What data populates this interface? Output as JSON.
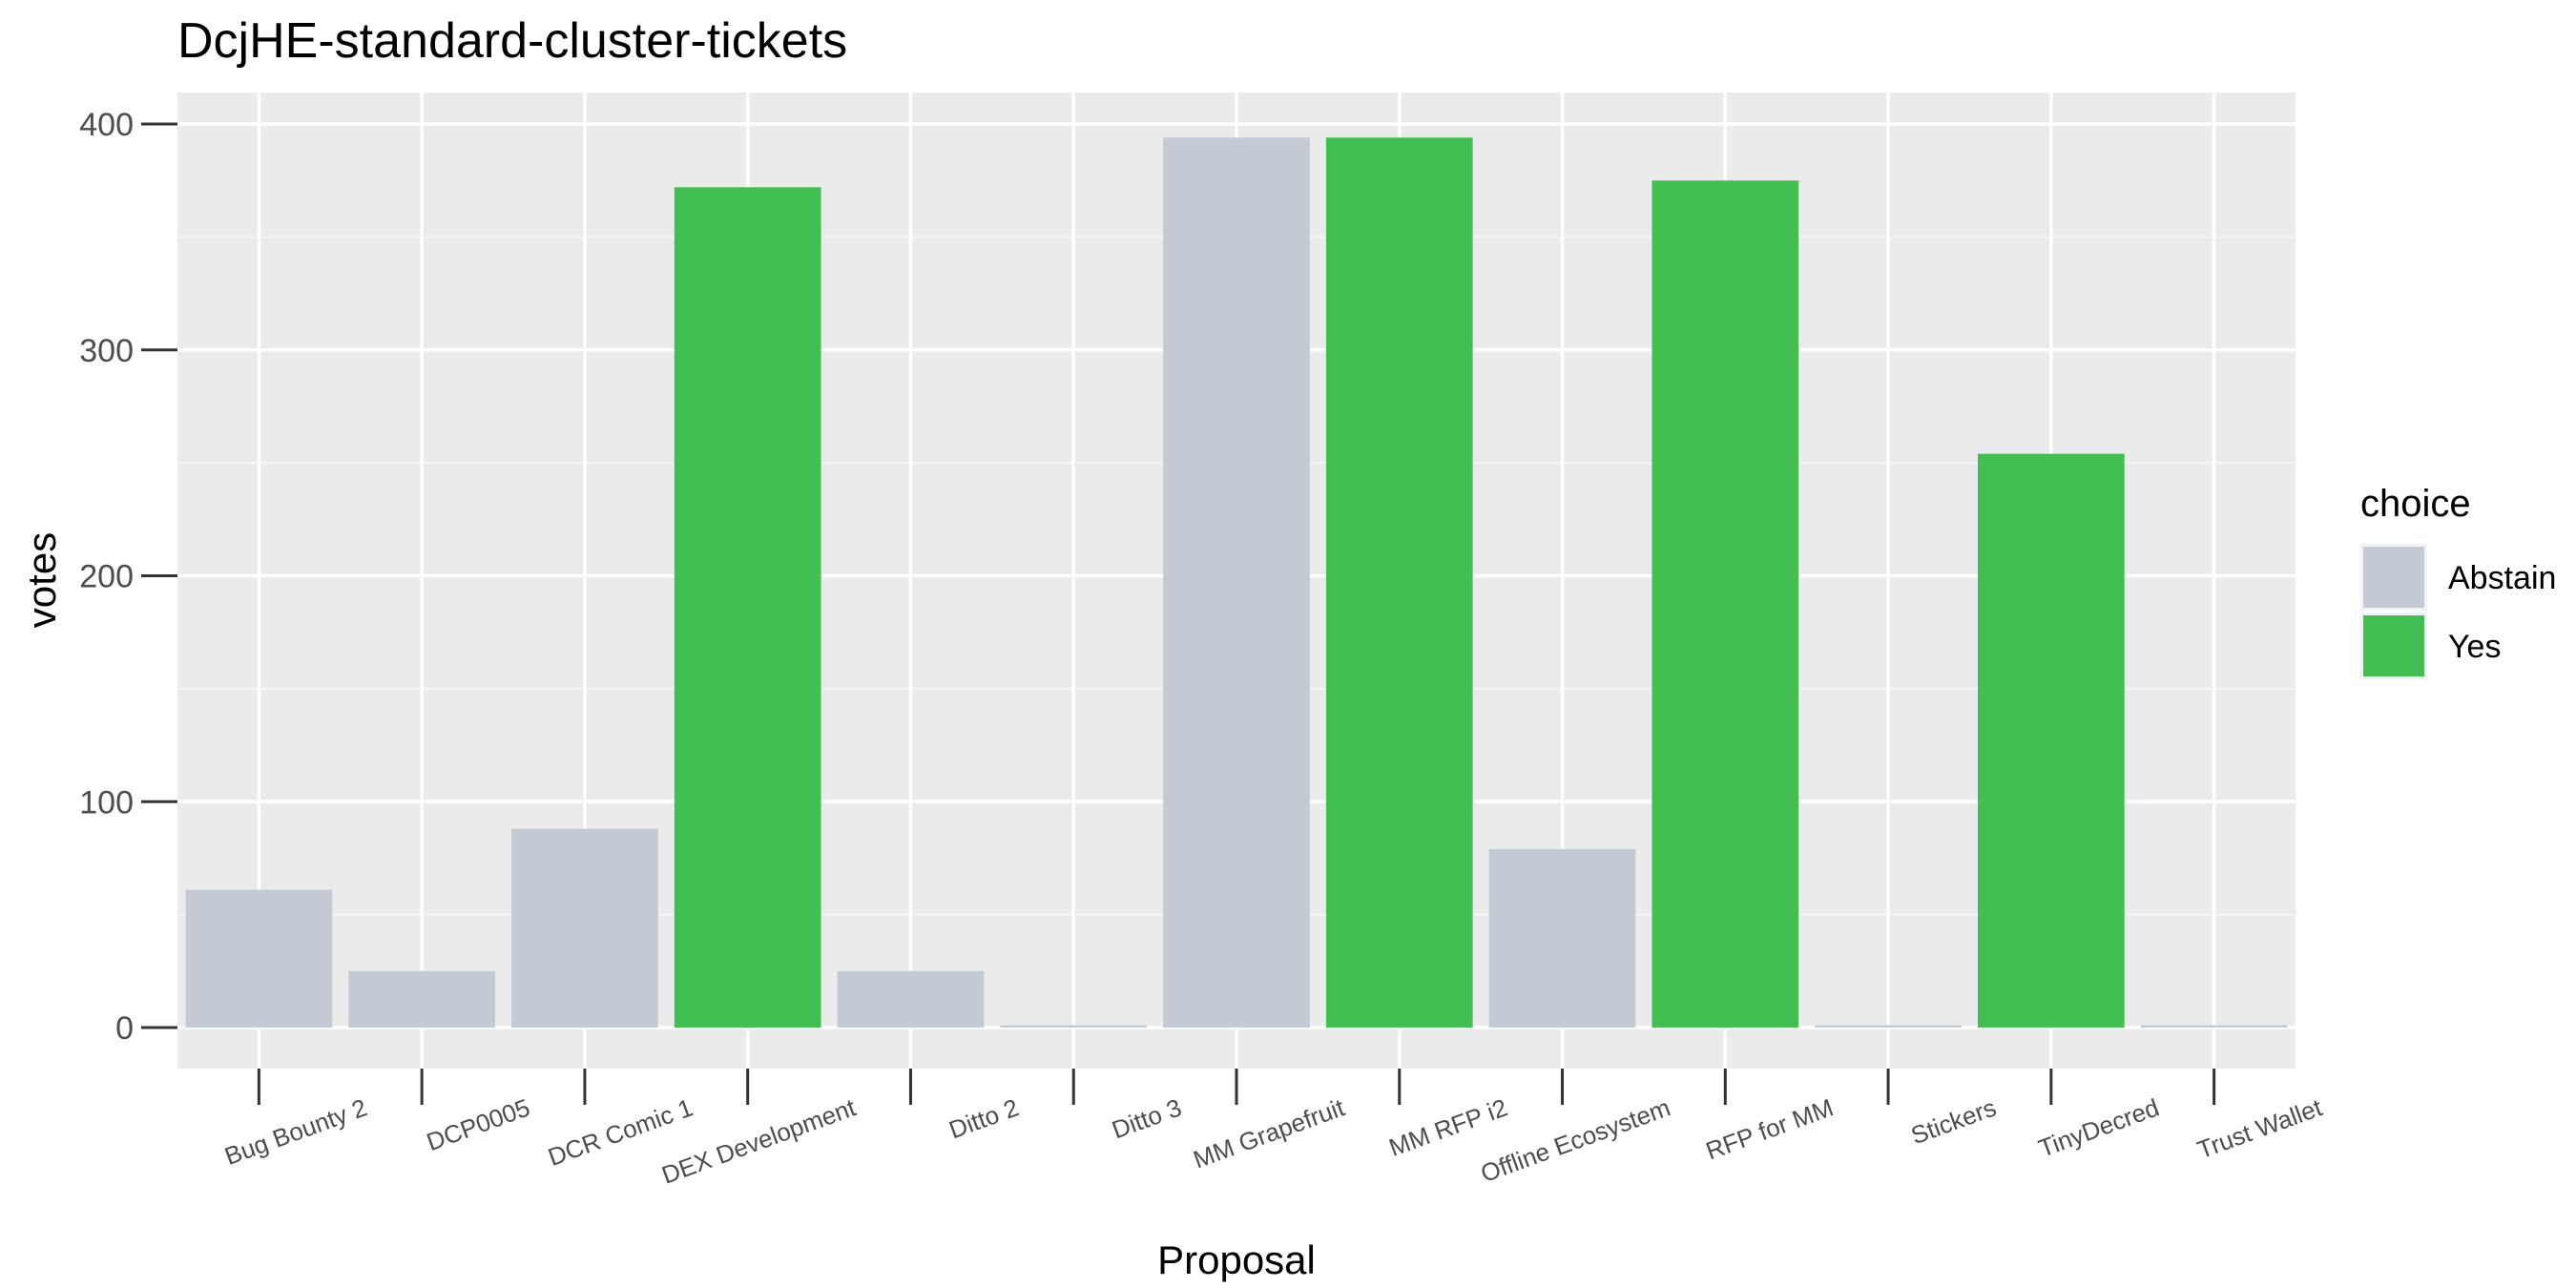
{
  "chart_data": {
    "type": "bar",
    "title": "DcjHE-standard-cluster-tickets",
    "xlabel": "Proposal",
    "ylabel": "votes",
    "ylim": [
      0,
      420
    ],
    "yticks": [
      0,
      100,
      200,
      300,
      400
    ],
    "grid": true,
    "categories": [
      "Bug Bounty 2",
      "DCP0005",
      "DCR Comic 1",
      "DEX Development",
      "Ditto 2",
      "Ditto 3",
      "MM Grapefruit",
      "MM RFP i2",
      "Offline Ecosystem",
      "RFP for MM",
      "Stickers",
      "TinyDecred",
      "Trust Wallet"
    ],
    "bars": [
      {
        "category": "Bug Bounty 2",
        "choice": "Abstain",
        "value": 61
      },
      {
        "category": "DCP0005",
        "choice": "Abstain",
        "value": 25
      },
      {
        "category": "DCR Comic 1",
        "choice": "Abstain",
        "value": 88
      },
      {
        "category": "DEX Development",
        "choice": "Yes",
        "value": 372
      },
      {
        "category": "Ditto 2",
        "choice": "Abstain",
        "value": 25
      },
      {
        "category": "Ditto 3",
        "choice": "Abstain",
        "value": 1
      },
      {
        "category": "MM Grapefruit",
        "choice": "Abstain",
        "value": 394
      },
      {
        "category": "MM RFP i2",
        "choice": "Yes",
        "value": 394
      },
      {
        "category": "Offline Ecosystem",
        "choice": "Abstain",
        "value": 79
      },
      {
        "category": "RFP for MM",
        "choice": "Yes",
        "value": 375
      },
      {
        "category": "Stickers",
        "choice": "Abstain",
        "value": 1
      },
      {
        "category": "TinyDecred",
        "choice": "Yes",
        "value": 254
      },
      {
        "category": "Trust Wallet",
        "choice": "Abstain",
        "value": 1
      }
    ],
    "legend": {
      "title": "choice",
      "placement": "right",
      "entries": [
        {
          "label": "Abstain",
          "color": "#c3cad3"
        },
        {
          "label": "Yes",
          "color": "#41bf53"
        }
      ]
    },
    "colors": {
      "panel_background": "#ebebeb",
      "grid_major": "#ffffff",
      "grid_minor": "#f5f5f5"
    }
  }
}
